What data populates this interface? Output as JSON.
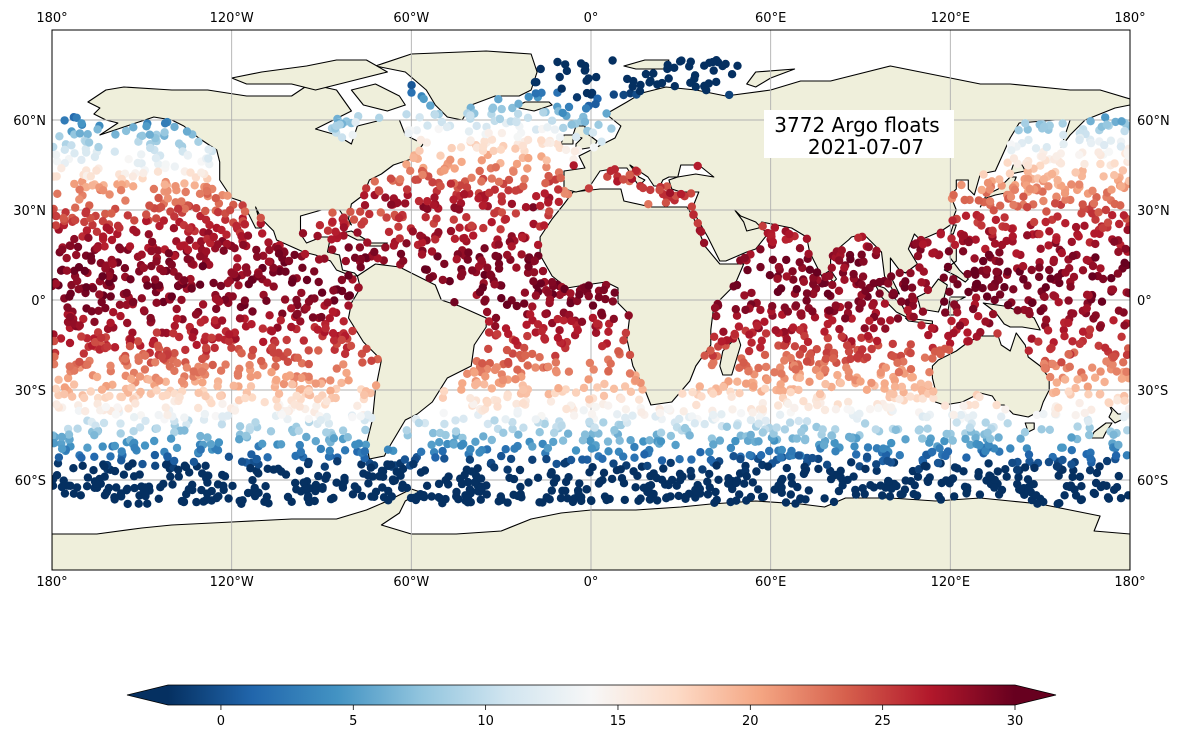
{
  "map": {
    "projection": "PlateCarree",
    "extent": {
      "lon": [
        -180,
        180
      ],
      "lat": [
        -90,
        90
      ]
    },
    "land_color": "#efefdb",
    "ocean_color": "#ffffff",
    "coastline_color": "#000000",
    "gridlines": true,
    "lon_ticks": [
      {
        "value": -180,
        "label": "180°"
      },
      {
        "value": -120,
        "label": "120°W"
      },
      {
        "value": -60,
        "label": "60°W"
      },
      {
        "value": 0,
        "label": "0°"
      },
      {
        "value": 60,
        "label": "60°E"
      },
      {
        "value": 120,
        "label": "120°E"
      },
      {
        "value": 180,
        "label": "180°"
      }
    ],
    "lat_ticks": [
      {
        "value": 60,
        "label": "60°N"
      },
      {
        "value": 30,
        "label": "30°N"
      },
      {
        "value": 0,
        "label": "0°"
      },
      {
        "value": -30,
        "label": "30°S"
      },
      {
        "value": -60,
        "label": "60°S"
      }
    ],
    "annotation": {
      "line1": "3772 Argo floats",
      "line2": "2021-07-07"
    }
  },
  "colorbar": {
    "colormap": "RdBu_r",
    "range": [
      -2,
      30
    ],
    "extend": "both",
    "ticks": [
      0,
      5,
      10,
      15,
      20,
      25,
      30
    ],
    "tick_labels": [
      "0",
      "5",
      "10",
      "15",
      "20",
      "25",
      "30"
    ],
    "stops": [
      "#053061",
      "#2166ac",
      "#4393c3",
      "#92c5de",
      "#d1e5f0",
      "#f7f7f7",
      "#fddbc7",
      "#f4a582",
      "#d6604d",
      "#b2182b",
      "#67001f"
    ]
  },
  "chart_data": {
    "type": "scatter",
    "float_count": 3772,
    "date": "2021-07-07",
    "value_range": [
      -2,
      30
    ],
    "sample_floats": [
      {
        "lon": -150,
        "lat": 10,
        "value": 28
      },
      {
        "lon": -40,
        "lat": 25,
        "value": 27
      },
      {
        "lon": 150,
        "lat": 15,
        "value": 29
      },
      {
        "lon": 80,
        "lat": -10,
        "value": 27
      },
      {
        "lon": -140,
        "lat": -45,
        "value": 11
      },
      {
        "lon": 10,
        "lat": -60,
        "value": 0
      },
      {
        "lon": -30,
        "lat": 60,
        "value": 8
      },
      {
        "lon": 18,
        "lat": 38,
        "value": 24
      }
    ]
  }
}
